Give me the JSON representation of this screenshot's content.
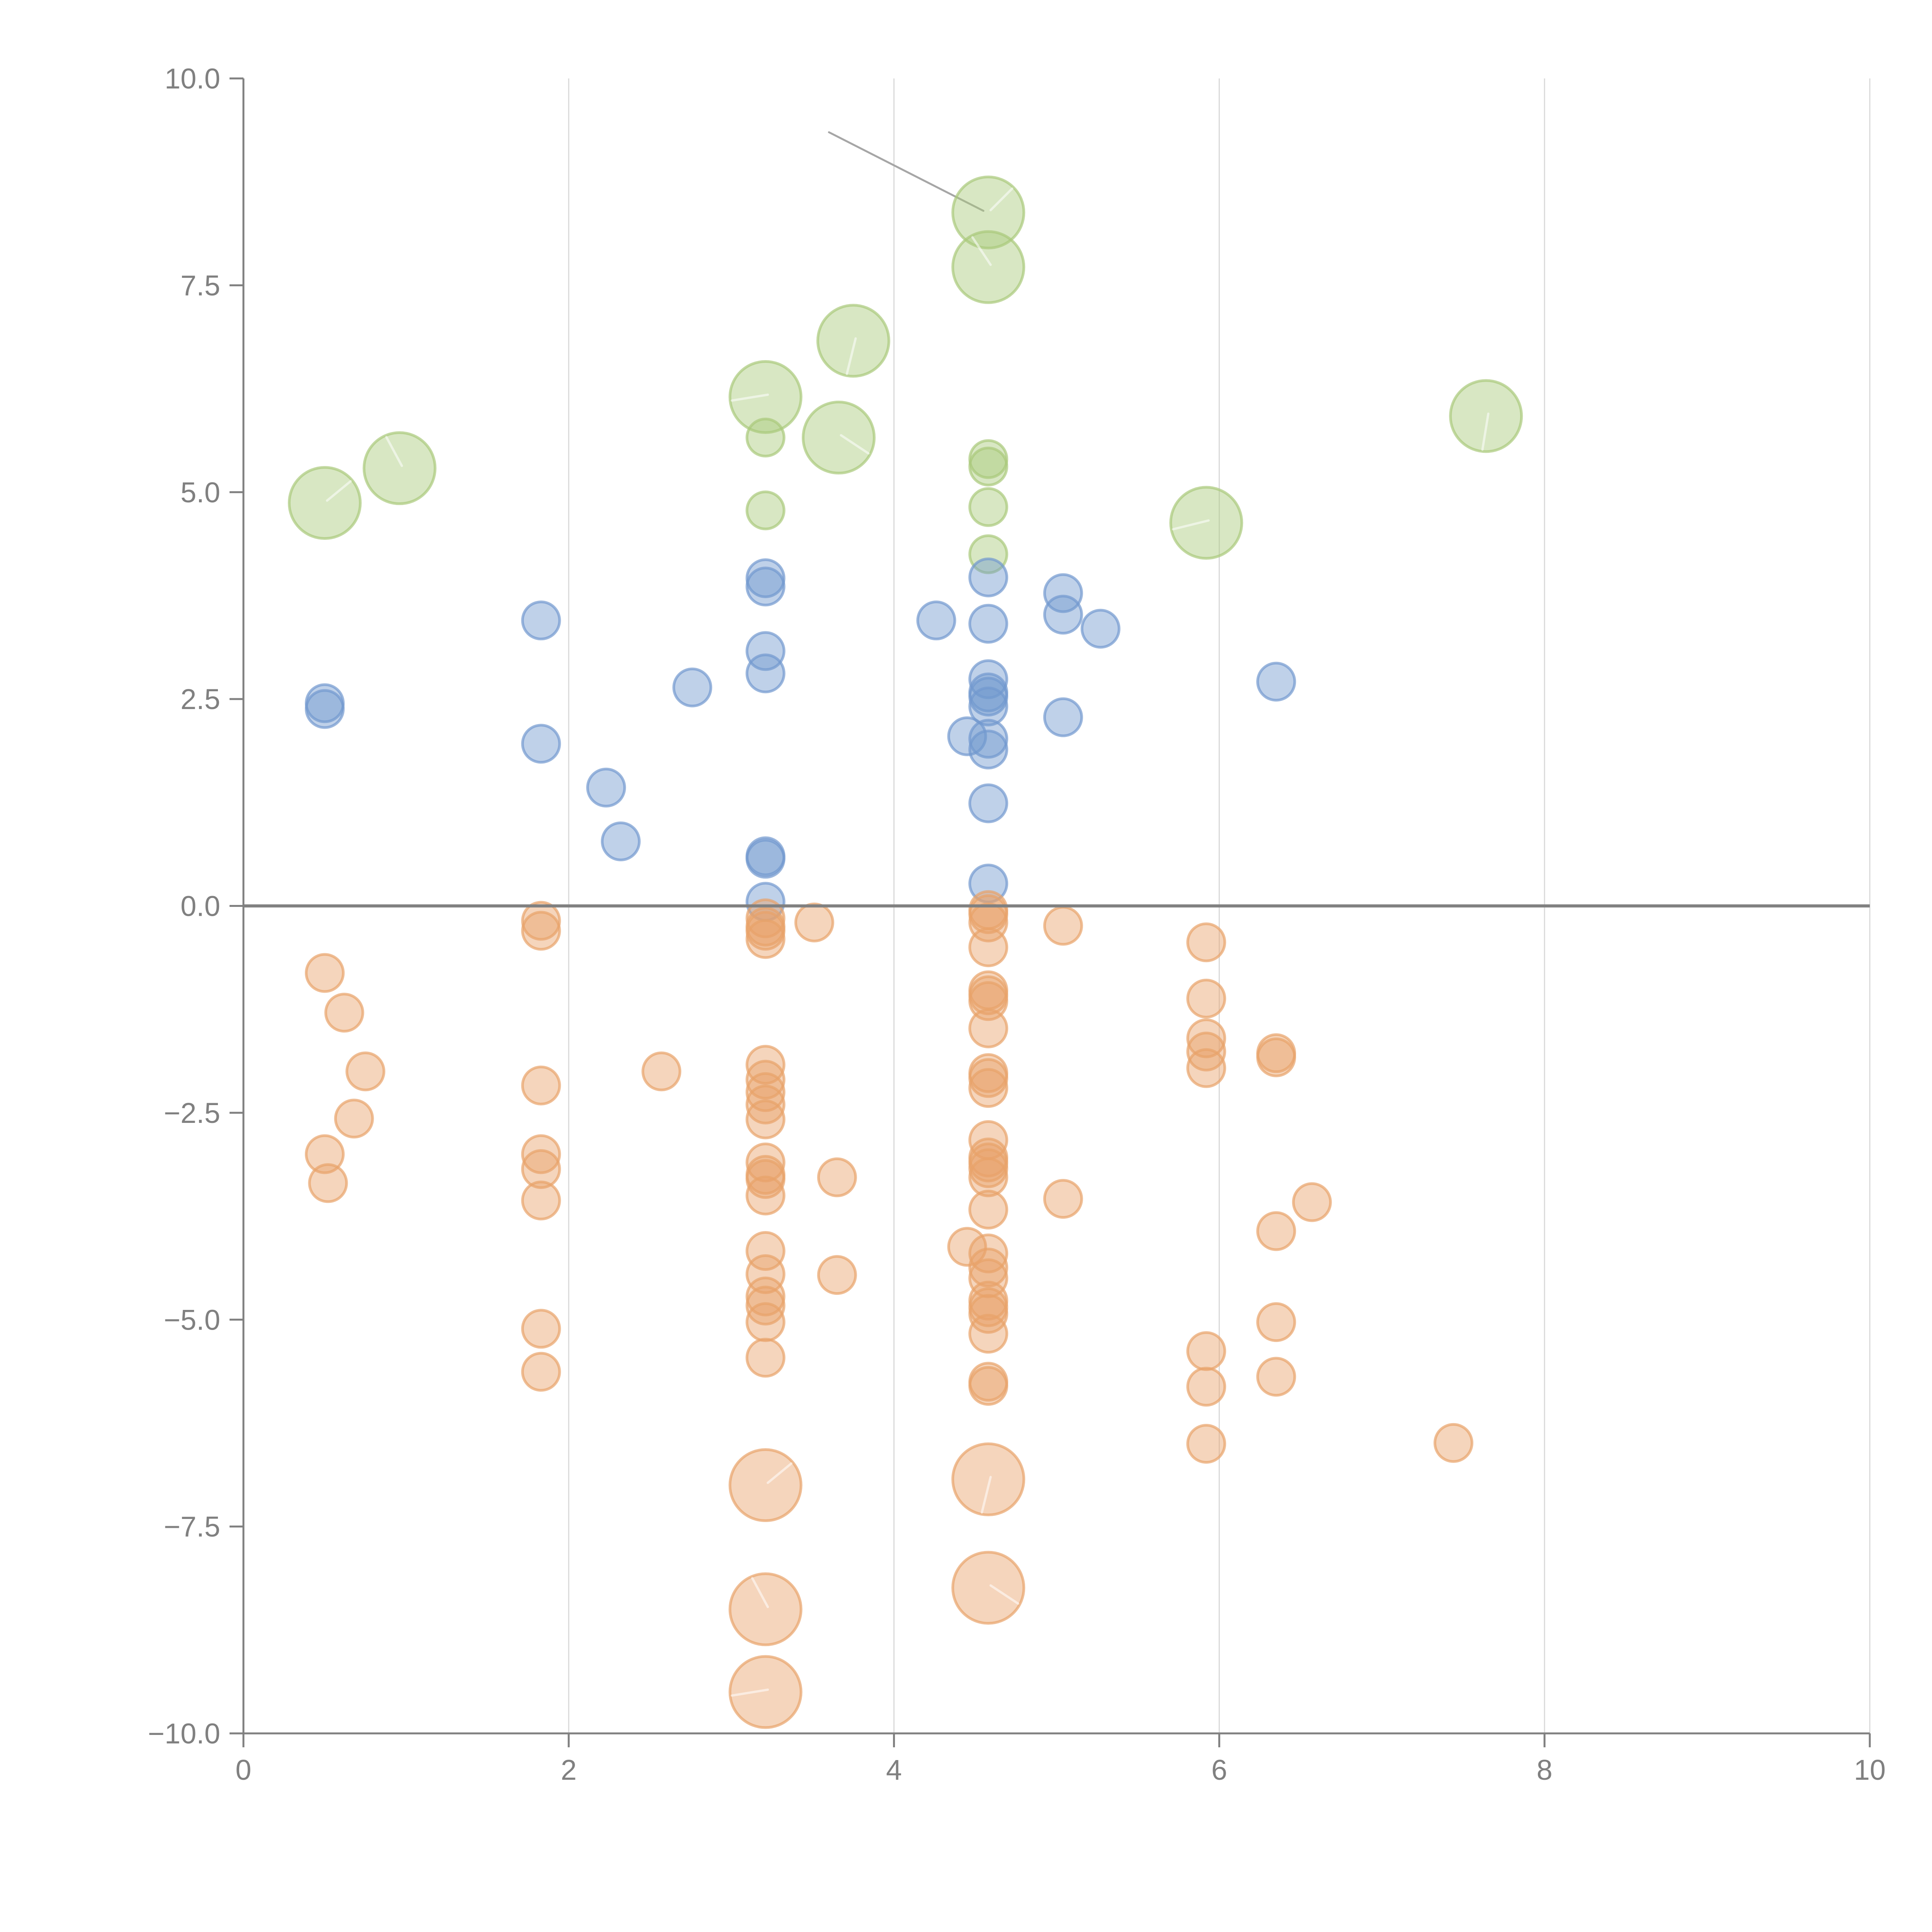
{
  "chart_data": {
    "type": "scatter",
    "title": "",
    "xlabel": "",
    "ylabel": "",
    "xlim": [
      0,
      10
    ],
    "ylim": [
      -10,
      10
    ],
    "x_ticks": [
      "0",
      "2",
      "4",
      "6",
      "8",
      "10"
    ],
    "x_tick_values": [
      0,
      2,
      4,
      6,
      8,
      10
    ],
    "y_ticks": [
      "−10.0",
      "−7.5",
      "−5.0",
      "−2.5",
      "0.0",
      "2.5",
      "5.0",
      "7.5",
      "10.0"
    ],
    "y_tick_values": [
      -10,
      -7.5,
      -5,
      -2.5,
      0,
      2.5,
      5,
      7.5,
      10
    ],
    "grid": "vertical",
    "zero_line": true,
    "legend": "none",
    "colors": {
      "green": "#a9c97a",
      "blue": "#7299cf",
      "orange": "#e8a26a",
      "axis": "#808080"
    },
    "connector": {
      "from": [
        3.6,
        9.35
      ],
      "to": [
        4.55,
        8.4
      ]
    },
    "series": [
      {
        "name": "green-large",
        "color": "green",
        "size": "large",
        "points": [
          [
            0.5,
            4.87
          ],
          [
            0.96,
            5.29
          ],
          [
            3.21,
            6.15
          ],
          [
            3.75,
            6.83
          ],
          [
            3.66,
            5.66
          ],
          [
            4.58,
            8.38
          ],
          [
            4.58,
            7.72
          ],
          [
            5.92,
            4.63
          ],
          [
            7.64,
            5.92
          ]
        ]
      },
      {
        "name": "green-small",
        "color": "green",
        "size": "small",
        "points": [
          [
            3.21,
            5.66
          ],
          [
            3.21,
            4.78
          ],
          [
            4.58,
            5.4
          ],
          [
            4.58,
            5.31
          ],
          [
            4.58,
            4.82
          ],
          [
            4.58,
            4.25
          ]
        ]
      },
      {
        "name": "blue",
        "color": "blue",
        "size": "small",
        "points": [
          [
            0.5,
            2.45
          ],
          [
            0.5,
            2.38
          ],
          [
            1.83,
            3.45
          ],
          [
            1.83,
            1.96
          ],
          [
            2.23,
            1.43
          ],
          [
            2.32,
            0.78
          ],
          [
            2.76,
            2.64
          ],
          [
            3.21,
            3.96
          ],
          [
            3.21,
            3.86
          ],
          [
            3.21,
            3.08
          ],
          [
            3.21,
            2.81
          ],
          [
            3.21,
            0.6
          ],
          [
            3.21,
            0.57
          ],
          [
            3.21,
            0.05
          ],
          [
            4.26,
            3.45
          ],
          [
            4.58,
            3.97
          ],
          [
            4.58,
            3.41
          ],
          [
            4.58,
            2.74
          ],
          [
            4.58,
            2.58
          ],
          [
            4.58,
            2.53
          ],
          [
            4.58,
            2.41
          ],
          [
            4.45,
            2.05
          ],
          [
            4.58,
            2.02
          ],
          [
            4.58,
            1.89
          ],
          [
            4.58,
            1.24
          ],
          [
            4.58,
            0.27
          ],
          [
            5.04,
            3.78
          ],
          [
            5.04,
            3.52
          ],
          [
            5.27,
            3.35
          ],
          [
            5.04,
            2.28
          ],
          [
            6.35,
            2.71
          ]
        ]
      },
      {
        "name": "orange-small",
        "color": "orange",
        "size": "small",
        "points": [
          [
            0.5,
            -0.81
          ],
          [
            0.62,
            -1.29
          ],
          [
            0.75,
            -2.0
          ],
          [
            0.68,
            -2.57
          ],
          [
            0.5,
            -3.0
          ],
          [
            0.52,
            -3.35
          ],
          [
            1.83,
            -0.18
          ],
          [
            1.83,
            -0.3
          ],
          [
            1.83,
            -2.17
          ],
          [
            1.83,
            -3.0
          ],
          [
            1.83,
            -3.18
          ],
          [
            1.83,
            -3.56
          ],
          [
            1.83,
            -5.11
          ],
          [
            1.83,
            -5.63
          ],
          [
            2.57,
            -2.0
          ],
          [
            3.21,
            -0.15
          ],
          [
            3.21,
            -0.25
          ],
          [
            3.21,
            -0.3
          ],
          [
            3.21,
            -0.4
          ],
          [
            3.51,
            -0.2
          ],
          [
            3.21,
            -1.92
          ],
          [
            3.21,
            -2.1
          ],
          [
            3.21,
            -2.25
          ],
          [
            3.21,
            -2.4
          ],
          [
            3.21,
            -2.58
          ],
          [
            3.21,
            -3.1
          ],
          [
            3.21,
            -3.25
          ],
          [
            3.21,
            -3.3
          ],
          [
            3.21,
            -3.5
          ],
          [
            3.21,
            -4.17
          ],
          [
            3.21,
            -4.45
          ],
          [
            3.21,
            -4.72
          ],
          [
            3.21,
            -4.83
          ],
          [
            3.21,
            -5.03
          ],
          [
            3.21,
            -5.46
          ],
          [
            3.65,
            -3.28
          ],
          [
            3.65,
            -4.46
          ],
          [
            4.58,
            -0.05
          ],
          [
            4.58,
            -0.1
          ],
          [
            4.58,
            -0.2
          ],
          [
            4.58,
            -0.5
          ],
          [
            4.58,
            -1.02
          ],
          [
            4.58,
            -1.08
          ],
          [
            4.58,
            -1.15
          ],
          [
            4.58,
            -1.48
          ],
          [
            4.58,
            -2.02
          ],
          [
            4.58,
            -2.08
          ],
          [
            4.58,
            -2.2
          ],
          [
            4.58,
            -2.83
          ],
          [
            4.58,
            -3.04
          ],
          [
            4.58,
            -3.1
          ],
          [
            4.58,
            -3.17
          ],
          [
            4.58,
            -3.28
          ],
          [
            4.58,
            -3.67
          ],
          [
            4.45,
            -4.12
          ],
          [
            4.58,
            -4.2
          ],
          [
            4.58,
            -4.37
          ],
          [
            4.58,
            -4.5
          ],
          [
            4.58,
            -4.77
          ],
          [
            4.58,
            -4.85
          ],
          [
            4.58,
            -4.93
          ],
          [
            4.58,
            -5.17
          ],
          [
            4.58,
            -5.75
          ],
          [
            4.58,
            -5.8
          ],
          [
            5.04,
            -0.24
          ],
          [
            5.04,
            -3.54
          ],
          [
            5.92,
            -0.44
          ],
          [
            5.92,
            -1.12
          ],
          [
            5.92,
            -1.6
          ],
          [
            5.92,
            -1.76
          ],
          [
            5.92,
            -1.96
          ],
          [
            5.92,
            -5.38
          ],
          [
            5.92,
            -5.81
          ],
          [
            5.92,
            -6.5
          ],
          [
            6.35,
            -1.78
          ],
          [
            6.35,
            -1.83
          ],
          [
            6.57,
            -3.58
          ],
          [
            6.35,
            -3.93
          ],
          [
            6.35,
            -5.03
          ],
          [
            6.35,
            -5.69
          ],
          [
            7.44,
            -6.49
          ]
        ]
      },
      {
        "name": "orange-large",
        "color": "orange",
        "size": "large",
        "points": [
          [
            3.21,
            -7.0
          ],
          [
            3.21,
            -8.5
          ],
          [
            3.21,
            -9.5
          ],
          [
            4.58,
            -6.93
          ],
          [
            4.58,
            -8.24
          ]
        ]
      }
    ]
  }
}
